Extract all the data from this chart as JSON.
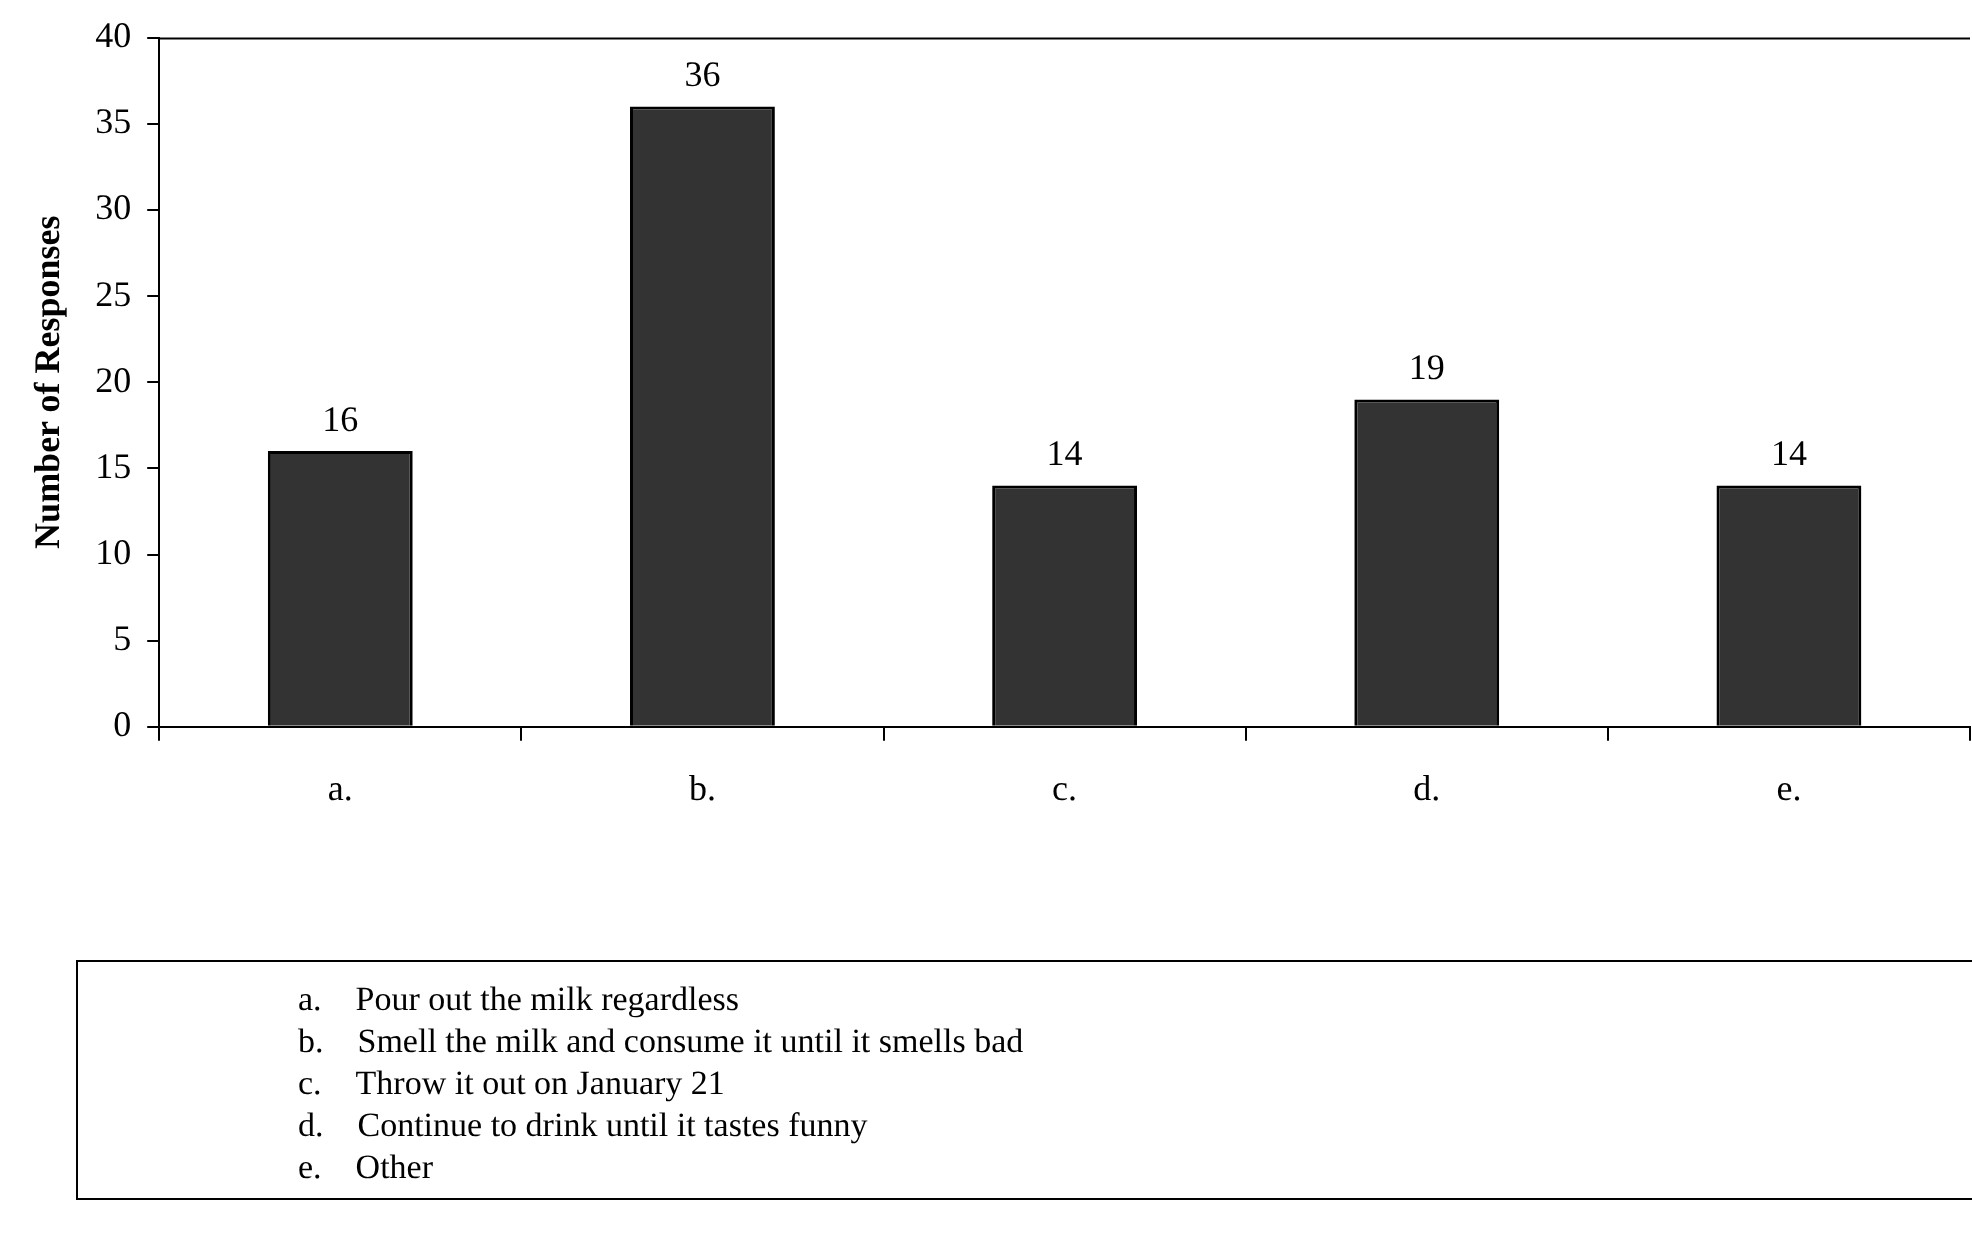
{
  "chart_data": {
    "type": "bar",
    "ylabel": "Number of Responses",
    "categories": [
      "a.",
      "b.",
      "c.",
      "d.",
      "e."
    ],
    "values": [
      16,
      36,
      14,
      19,
      14
    ],
    "color": "#333333",
    "ylim": [
      0,
      40
    ],
    "yticks": [
      0,
      5,
      10,
      15,
      20,
      25,
      30,
      35,
      40
    ],
    "grid": false,
    "legend": false,
    "data_labels": true,
    "annotations": [
      "a.    Pour out the milk regardless",
      "b.    Smell the milk and consume it until it smells bad",
      "c.    Throw it out on January 21",
      "d.    Continue to drink until it tastes funny",
      "e.    Other"
    ]
  }
}
